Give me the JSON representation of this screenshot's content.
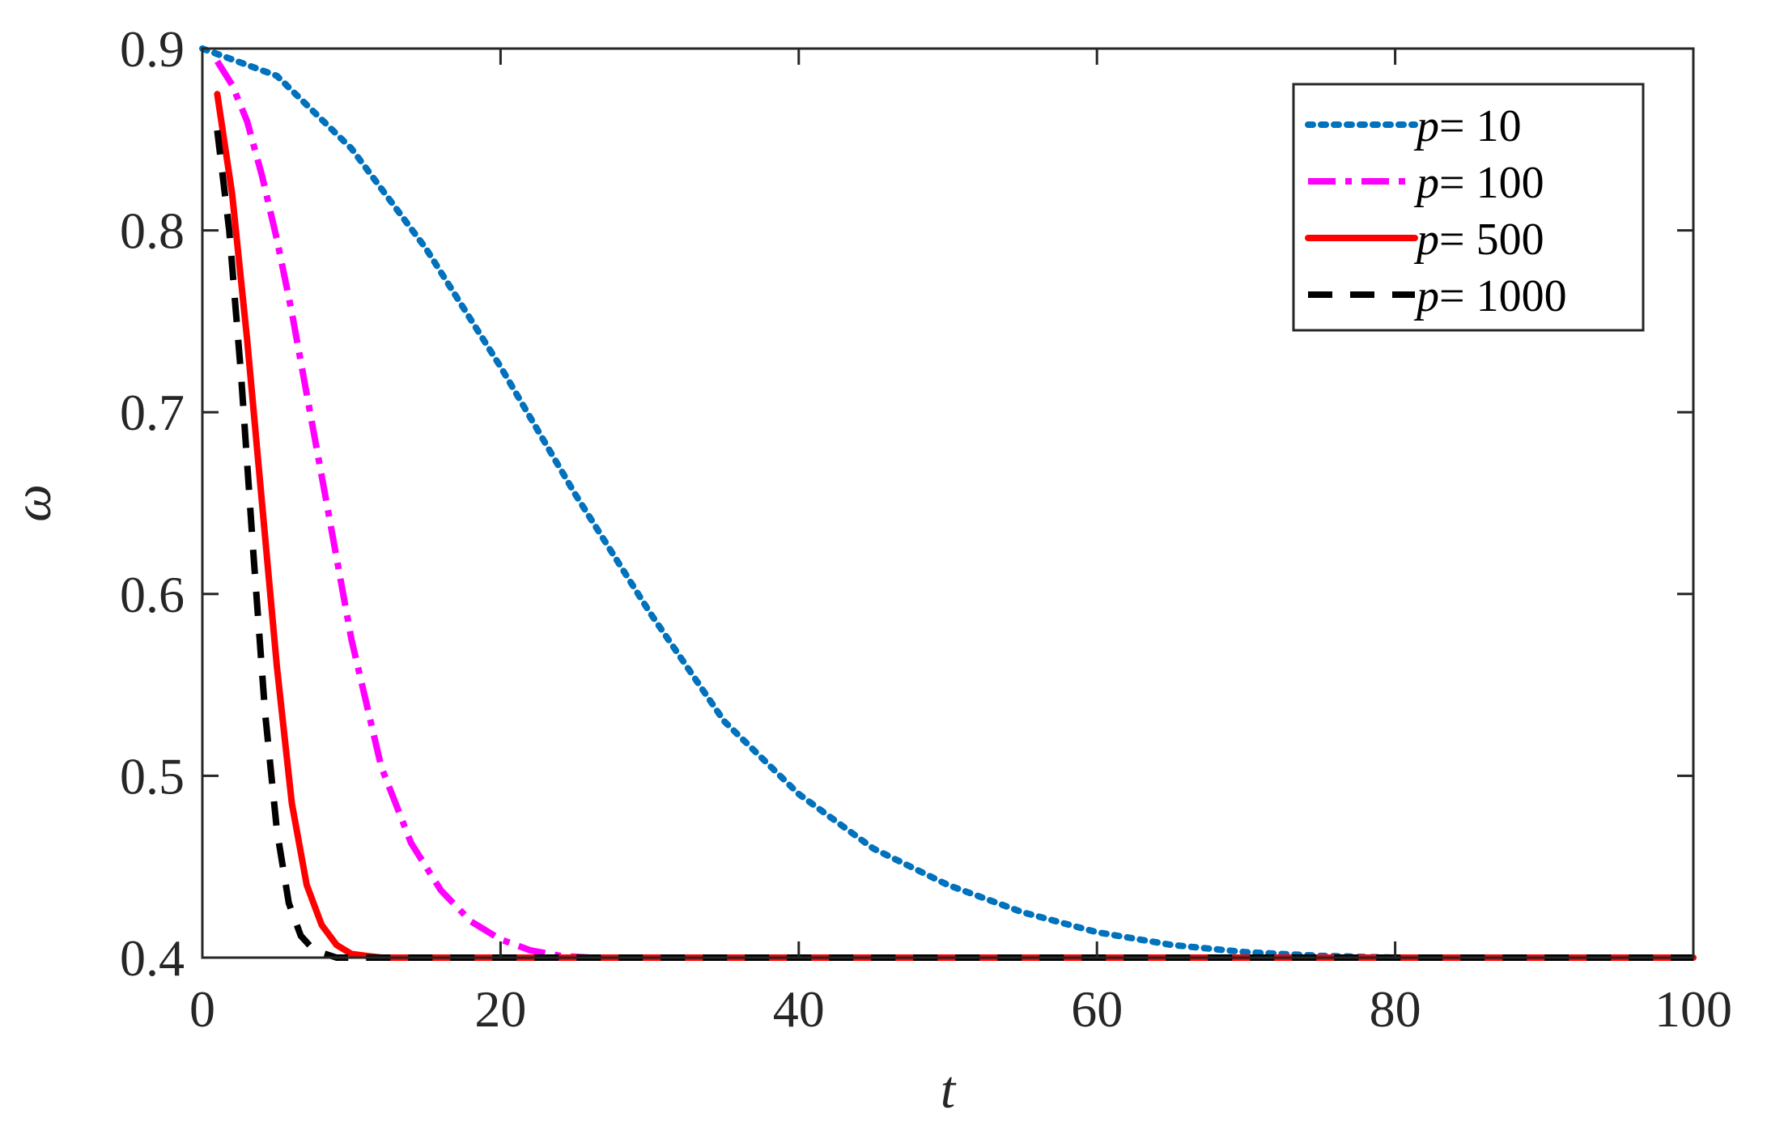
{
  "chart_data": {
    "type": "line",
    "title": "",
    "xlabel": "t",
    "ylabel": "ω",
    "xlim": [
      0,
      100
    ],
    "ylim": [
      0.4,
      0.9
    ],
    "xticks": [
      0,
      20,
      40,
      60,
      80,
      100
    ],
    "xtick_labels": [
      "0",
      "20",
      "40",
      "60",
      "80",
      "100"
    ],
    "yticks": [
      0.4,
      0.5,
      0.6,
      0.7,
      0.8,
      0.9
    ],
    "ytick_labels": [
      "0.4",
      "0.5",
      "0.6",
      "0.7",
      "0.8",
      "0.9"
    ],
    "grid": false,
    "legend_position": "top-right",
    "series": [
      {
        "name": "p= 10",
        "legend_var": "p",
        "legend_rest": "= 10",
        "color": "#0072BD",
        "style": "dotted",
        "x": [
          0,
          5,
          10,
          15,
          20,
          25,
          30,
          35,
          40,
          45,
          50,
          55,
          60,
          65,
          70,
          75,
          80,
          85,
          90,
          95,
          100
        ],
        "y": [
          0.9,
          0.885,
          0.845,
          0.79,
          0.725,
          0.655,
          0.59,
          0.53,
          0.49,
          0.46,
          0.44,
          0.425,
          0.414,
          0.407,
          0.403,
          0.401,
          0.4,
          0.4,
          0.4,
          0.4,
          0.4
        ]
      },
      {
        "name": "p= 100",
        "legend_var": "p",
        "legend_rest": "= 100",
        "color": "#FF00FF",
        "style": "dashdot",
        "x": [
          1,
          2,
          3,
          4,
          5,
          6,
          7,
          8,
          9,
          10,
          12,
          14,
          16,
          18,
          20,
          22,
          24,
          26,
          28,
          30,
          40,
          60,
          80,
          100
        ],
        "y": [
          0.893,
          0.88,
          0.86,
          0.83,
          0.795,
          0.755,
          0.71,
          0.665,
          0.62,
          0.575,
          0.505,
          0.463,
          0.437,
          0.42,
          0.41,
          0.404,
          0.401,
          0.4,
          0.4,
          0.4,
          0.4,
          0.4,
          0.4,
          0.4
        ]
      },
      {
        "name": "p= 500",
        "legend_var": "p",
        "legend_rest": "= 500",
        "color": "#FF0000",
        "style": "solid",
        "x": [
          1,
          2,
          3,
          4,
          5,
          6,
          7,
          8,
          9,
          10,
          11,
          12,
          13,
          20,
          40,
          60,
          80,
          100
        ],
        "y": [
          0.875,
          0.82,
          0.74,
          0.65,
          0.56,
          0.485,
          0.44,
          0.418,
          0.407,
          0.402,
          0.401,
          0.4,
          0.4,
          0.4,
          0.4,
          0.4,
          0.4,
          0.4
        ]
      },
      {
        "name": "p= 1000",
        "legend_var": "p",
        "legend_rest": "= 1000",
        "color": "#000000",
        "style": "dashed",
        "x": [
          1,
          1.8,
          2.6,
          3.4,
          4.2,
          5,
          5.8,
          6.6,
          7.5,
          9,
          20,
          40,
          60,
          80,
          100
        ],
        "y": [
          0.855,
          0.8,
          0.72,
          0.625,
          0.535,
          0.47,
          0.43,
          0.412,
          0.404,
          0.4,
          0.4,
          0.4,
          0.4,
          0.4,
          0.4
        ]
      }
    ]
  }
}
